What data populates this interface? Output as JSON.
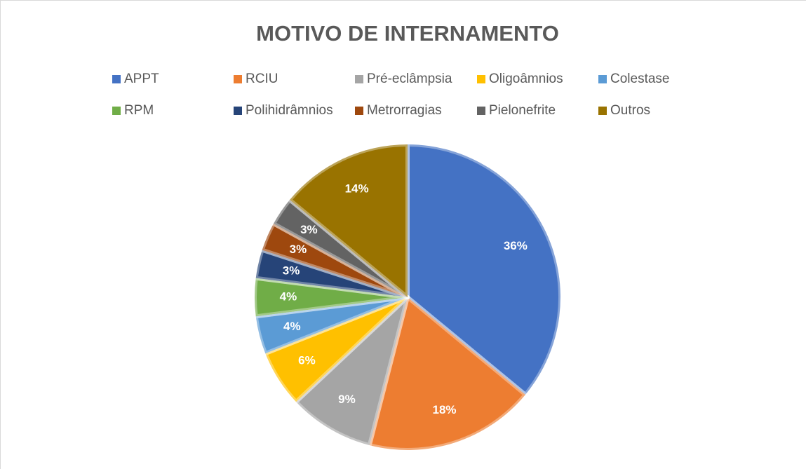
{
  "chart_data": {
    "type": "pie",
    "title": "MOTIVO DE INTERNAMENTO",
    "categories": [
      "APPT",
      "RCIU",
      "Pré-eclâmpsia",
      "Oligoâmnios",
      "Colestase",
      "RPM",
      "Polihidrâmnios",
      "Metrorragias",
      "Pielonefrite",
      "Outros"
    ],
    "values": [
      36,
      18,
      9,
      6,
      4,
      4,
      3,
      3,
      3,
      14
    ],
    "value_labels": [
      "36%",
      "18%",
      "9%",
      "6%",
      "4%",
      "4%",
      "3%",
      "3%",
      "3%",
      "14%"
    ],
    "colors": [
      "#4472c4",
      "#ed7d31",
      "#a5a5a5",
      "#ffc000",
      "#5b9bd5",
      "#70ad47",
      "#264478",
      "#9e480e",
      "#636363",
      "#997300"
    ],
    "legend": "top"
  }
}
